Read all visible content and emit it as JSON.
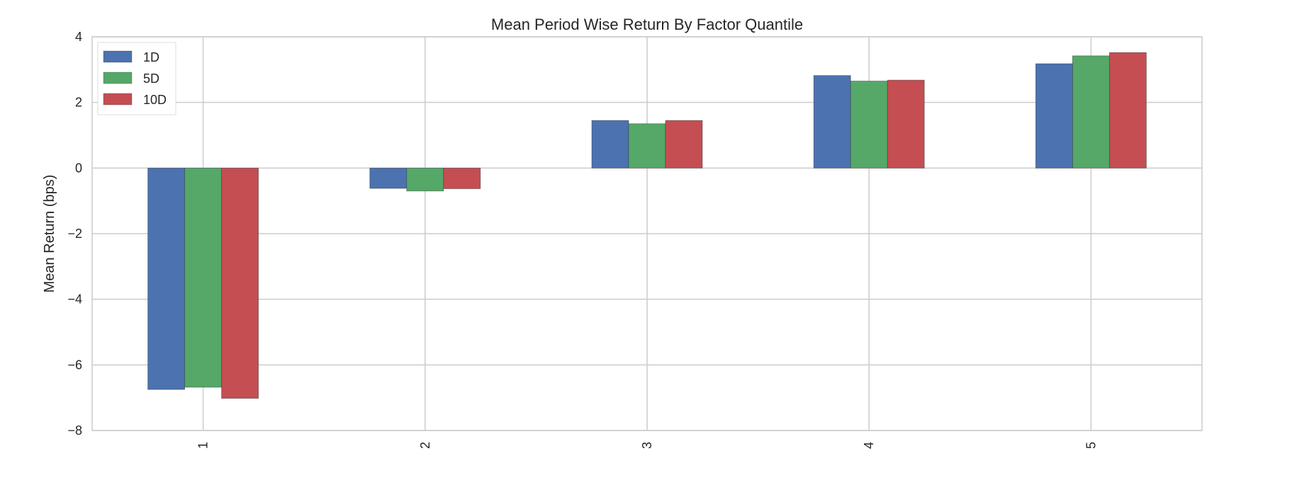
{
  "chart_data": {
    "type": "bar",
    "title": "Mean Period Wise Return By Factor Quantile",
    "xlabel": "",
    "ylabel": "Mean Return (bps)",
    "categories": [
      "1",
      "2",
      "3",
      "4",
      "5"
    ],
    "ylim": [
      -8,
      4
    ],
    "yticks": [
      4,
      2,
      0,
      -2,
      -4,
      -6,
      -8
    ],
    "ytick_labels": [
      "4",
      "2",
      "0",
      "−2",
      "−4",
      "−6",
      "−8"
    ],
    "grid": true,
    "legend_position": "top-left",
    "series": [
      {
        "name": "1D",
        "color": "#4c72b0",
        "values": [
          -6.75,
          -0.62,
          1.45,
          2.82,
          3.18
        ]
      },
      {
        "name": "5D",
        "color": "#55a868",
        "values": [
          -6.68,
          -0.7,
          1.35,
          2.65,
          3.42
        ]
      },
      {
        "name": "10D",
        "color": "#c44e52",
        "values": [
          -7.02,
          -0.63,
          1.45,
          2.68,
          3.52
        ]
      }
    ]
  }
}
